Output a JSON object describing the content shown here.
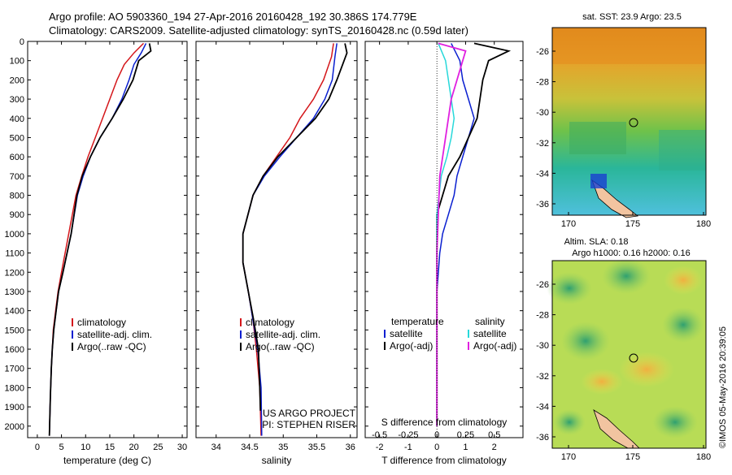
{
  "header": {
    "line1": "Argo profile: AO 5903360_194 27-Apr-2016 20160428_192 30.386S 174.779E",
    "line2": "Climatology: CARS2009. Satellite-adjusted climatology: synTS_20160428.nc (0.59d later)"
  },
  "colors": {
    "climatology": "#d4161a",
    "satellite": "#0a1fd0",
    "argo": "#000000",
    "cyan": "#27d8da",
    "magenta": "#e020e0"
  },
  "chart_data": [
    {
      "type": "line",
      "xlabel": "temperature (deg C)",
      "xlim": [
        -2,
        31
      ],
      "ylim": [
        0,
        2060
      ],
      "xticks": [
        0,
        5,
        10,
        15,
        20,
        25,
        30
      ],
      "yticks": [
        0,
        100,
        200,
        300,
        400,
        500,
        600,
        700,
        800,
        900,
        1000,
        1100,
        1200,
        1300,
        1400,
        1500,
        1600,
        1700,
        1800,
        1900,
        2000
      ],
      "legend": [
        "climatology",
        "satellite-adj. clim.",
        "Argo(..raw -QC)"
      ],
      "series": [
        {
          "name": "climatology",
          "x": [
            22,
            20,
            18,
            16.5,
            15,
            12,
            10.5,
            9.2,
            8,
            6.5,
            5,
            4.3,
            3.8,
            3.3,
            3.1,
            2.9,
            2.7,
            2.5
          ],
          "y": [
            10,
            60,
            120,
            200,
            300,
            500,
            600,
            700,
            800,
            1000,
            1200,
            1300,
            1400,
            1500,
            1600,
            1700,
            1850,
            2050
          ]
        },
        {
          "name": "satellite-adj. clim.",
          "x": [
            22.5,
            21.5,
            20,
            19,
            17.5,
            15.5,
            13,
            11,
            9.5,
            8.3,
            7,
            5.3,
            4.4,
            3.9,
            3.4,
            3.1,
            2.9,
            2.7,
            2.5
          ],
          "y": [
            10,
            60,
            120,
            200,
            300,
            400,
            500,
            600,
            700,
            800,
            1000,
            1200,
            1300,
            1400,
            1500,
            1600,
            1700,
            1850,
            2050
          ]
        },
        {
          "name": "Argo(..raw -QC)",
          "x": [
            23.2,
            23.5,
            21,
            19.8,
            17.8,
            15.5,
            13,
            11,
            9.3,
            8.2,
            7,
            5.3,
            4.4,
            3.9,
            3.4,
            3.1,
            2.9,
            2.7,
            2.5
          ],
          "y": [
            10,
            50,
            100,
            200,
            300,
            400,
            500,
            600,
            700,
            800,
            1000,
            1200,
            1300,
            1400,
            1500,
            1600,
            1700,
            1850,
            2050
          ]
        }
      ]
    },
    {
      "type": "line",
      "xlabel": "salinity",
      "xlim": [
        33.7,
        36.1
      ],
      "ylim": [
        0,
        2060
      ],
      "xticks": [
        34,
        34.5,
        35,
        35.5,
        36
      ],
      "legend": [
        "climatology",
        "satellite-adj. clim.",
        "Argo(..raw -QC)"
      ],
      "annotations": [
        "US ARGO PROJECT",
        "PI: STEPHEN RISER"
      ],
      "series": [
        {
          "name": "climatology",
          "x": [
            35.75,
            35.72,
            35.6,
            35.45,
            35.25,
            35.1,
            34.9,
            34.7,
            34.55,
            34.4,
            34.4,
            34.48,
            34.55,
            34.6,
            34.65,
            34.67
          ],
          "y": [
            10,
            80,
            200,
            300,
            400,
            500,
            600,
            700,
            800,
            1000,
            1150,
            1300,
            1450,
            1600,
            1800,
            2050
          ]
        },
        {
          "name": "satellite-adj. clim.",
          "x": [
            35.8,
            35.77,
            35.73,
            35.62,
            35.45,
            35.2,
            34.95,
            34.72,
            34.55,
            34.4,
            34.4,
            34.48,
            34.55,
            34.62,
            34.67,
            34.68
          ],
          "y": [
            10,
            80,
            200,
            300,
            400,
            500,
            600,
            700,
            800,
            1000,
            1150,
            1300,
            1450,
            1600,
            1800,
            2050
          ]
        },
        {
          "name": "Argo(..raw -QC)",
          "x": [
            35.92,
            35.95,
            35.8,
            35.68,
            35.48,
            35.2,
            34.92,
            34.7,
            34.55,
            34.4,
            34.4,
            34.48,
            34.56,
            34.63,
            34.65,
            34.66
          ],
          "y": [
            10,
            60,
            200,
            300,
            400,
            500,
            600,
            700,
            800,
            1000,
            1150,
            1300,
            1450,
            1600,
            1800,
            1920
          ]
        }
      ]
    },
    {
      "type": "line",
      "xlabel": "T difference from climatology",
      "xlabel_top": "S difference from climatology",
      "xlim": [
        -2.5,
        3
      ],
      "ylim": [
        0,
        2060
      ],
      "xticks": [
        -2,
        -1,
        0,
        1,
        2
      ],
      "xticks_top": [
        -0.5,
        -0.25,
        0,
        0.25,
        0.5
      ],
      "legend_temperature": {
        "title": "temperature",
        "items": [
          "satellite",
          "Argo(-adj)"
        ]
      },
      "legend_salinity": {
        "title": "salinity",
        "items": [
          "satellite",
          "Argo(-adj)"
        ]
      },
      "series": [
        {
          "name": "T satellite",
          "x": [
            0.5,
            0.8,
            0.9,
            1.1,
            1.3,
            1.1,
            0.9,
            0.7,
            0.6,
            0.4,
            0.2,
            0.1,
            0,
            0
          ],
          "y": [
            10,
            100,
            200,
            300,
            400,
            500,
            600,
            700,
            800,
            900,
            1000,
            1100,
            1300,
            2000
          ]
        },
        {
          "name": "T Argo(-adj)",
          "x": [
            1.3,
            2.5,
            1.8,
            1.6,
            1.5,
            1.4,
            0.8,
            0.4,
            0.2,
            0,
            0,
            0,
            0
          ],
          "y": [
            10,
            50,
            100,
            200,
            300,
            400,
            600,
            700,
            800,
            900,
            1100,
            1300,
            2000
          ]
        },
        {
          "name": "S satellite",
          "x": [
            0.05,
            0.3,
            0.4,
            0.5,
            0.6,
            0.5,
            0.35,
            0.15,
            0,
            0
          ],
          "y": [
            10,
            100,
            200,
            300,
            400,
            500,
            600,
            700,
            900,
            2000
          ]
        },
        {
          "name": "S Argo(-adj)",
          "x": [
            0.05,
            1.0,
            0.9,
            0.7,
            0.5,
            0.3,
            0.1,
            0.05,
            0,
            0
          ],
          "y": [
            10,
            50,
            100,
            200,
            300,
            500,
            700,
            900,
            1100,
            2000
          ]
        }
      ]
    }
  ],
  "maps": [
    {
      "title": "sat. SST: 23.9 Argo: 23.5",
      "xticks": [
        "170",
        "175",
        "180"
      ],
      "yticks": [
        "-26",
        "-28",
        "-30",
        "-32",
        "-34",
        "-36"
      ]
    },
    {
      "title": "Altim. SLA: 0.18",
      "subtitle": "Argo h1000: 0.16 h2000: 0.16",
      "xticks": [
        "170",
        "175",
        "180"
      ],
      "yticks": [
        "-26",
        "-28",
        "-30",
        "-32",
        "-34",
        "-36"
      ]
    }
  ],
  "credit": "©IMOS 05-May-2016 20:39:05"
}
